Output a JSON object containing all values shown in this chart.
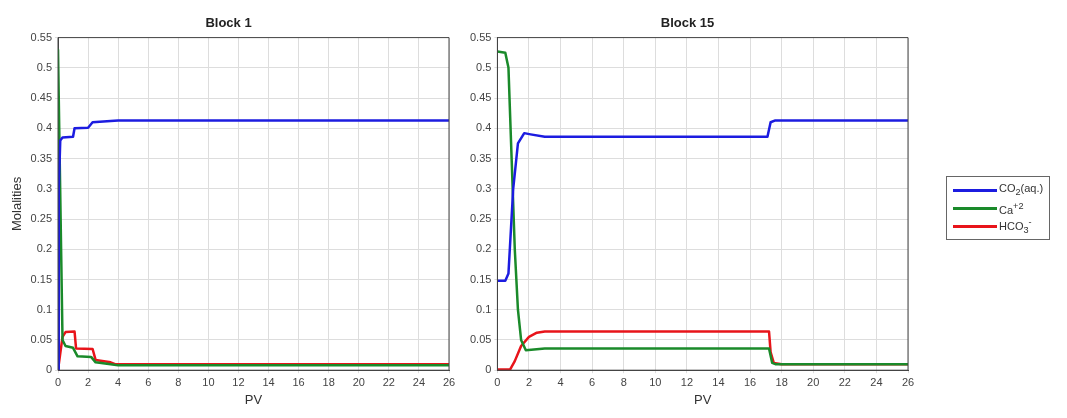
{
  "chart_data": [
    {
      "type": "line",
      "title": "Block 1",
      "xlabel": "PV",
      "ylabel": "Molalities",
      "xlim": [
        0,
        26
      ],
      "ylim": [
        0,
        0.55
      ],
      "xticks": [
        0,
        2,
        4,
        6,
        8,
        10,
        12,
        14,
        16,
        18,
        20,
        22,
        24,
        26
      ],
      "yticks": [
        0,
        0.05,
        0.1,
        0.15,
        0.2,
        0.25,
        0.3,
        0.35,
        0.4,
        0.45,
        0.5,
        0.55
      ],
      "grid": true,
      "marker": "none",
      "line_style": "solid",
      "series": [
        {
          "color": "#1c1ce0",
          "x": [
            0,
            0.05,
            0.15,
            0.3,
            1.0,
            1.1,
            2.0,
            2.3,
            3.5,
            4,
            26
          ],
          "values": [
            0,
            0.3,
            0.38,
            0.385,
            0.386,
            0.4,
            0.401,
            0.41,
            0.412,
            0.413,
            0.413
          ]
        },
        {
          "color": "#1a8a2a",
          "x": [
            0,
            0.3,
            0.5,
            1.0,
            1.3,
            2.2,
            2.5,
            3.5,
            4,
            26
          ],
          "values": [
            0.53,
            0.05,
            0.04,
            0.037,
            0.023,
            0.022,
            0.013,
            0.01,
            0.008,
            0.008
          ]
        },
        {
          "color": "#e8141a",
          "x": [
            0,
            0.3,
            0.5,
            1.1,
            1.2,
            2.3,
            2.5,
            3.5,
            3.8,
            26
          ],
          "values": [
            0,
            0.055,
            0.063,
            0.064,
            0.036,
            0.035,
            0.017,
            0.013,
            0.01,
            0.01
          ]
        }
      ]
    },
    {
      "type": "line",
      "title": "Block 15",
      "xlabel": "PV",
      "xlim": [
        0,
        26
      ],
      "ylim": [
        0,
        0.55
      ],
      "xticks": [
        0,
        2,
        4,
        6,
        8,
        10,
        12,
        14,
        16,
        18,
        20,
        22,
        24,
        26
      ],
      "yticks": [
        0,
        0.05,
        0.1,
        0.15,
        0.2,
        0.25,
        0.3,
        0.35,
        0.4,
        0.45,
        0.5,
        0.55
      ],
      "grid": true,
      "marker": "none",
      "line_style": "solid",
      "legend": "right",
      "series": [
        {
          "name": "CO$_{2}$(aq.)",
          "color": "#1c1ce0",
          "x": [
            0,
            0.5,
            0.7,
            1.0,
            1.3,
            1.7,
            2.1,
            3,
            17.1,
            17.3,
            17.6,
            26
          ],
          "values": [
            0.148,
            0.148,
            0.16,
            0.3,
            0.375,
            0.392,
            0.39,
            0.386,
            0.386,
            0.41,
            0.413,
            0.413
          ]
        },
        {
          "name": "Ca$^{+2}$",
          "color": "#1a8a2a",
          "x": [
            0,
            0.5,
            0.7,
            0.9,
            1.1,
            1.3,
            1.5,
            1.8,
            3,
            17.2,
            17.4,
            17.6,
            26
          ],
          "values": [
            0.527,
            0.525,
            0.5,
            0.35,
            0.2,
            0.1,
            0.05,
            0.033,
            0.036,
            0.036,
            0.012,
            0.01,
            0.01
          ]
        },
        {
          "name": "HCO$_{3}$$^{-}$",
          "color": "#e8141a",
          "x": [
            0,
            0.8,
            1.1,
            1.5,
            2,
            2.5,
            3,
            17.2,
            17.3,
            17.5,
            18,
            26
          ],
          "values": [
            0.001,
            0.001,
            0.015,
            0.04,
            0.055,
            0.062,
            0.064,
            0.064,
            0.03,
            0.012,
            0.01,
            0.01
          ]
        }
      ]
    }
  ]
}
